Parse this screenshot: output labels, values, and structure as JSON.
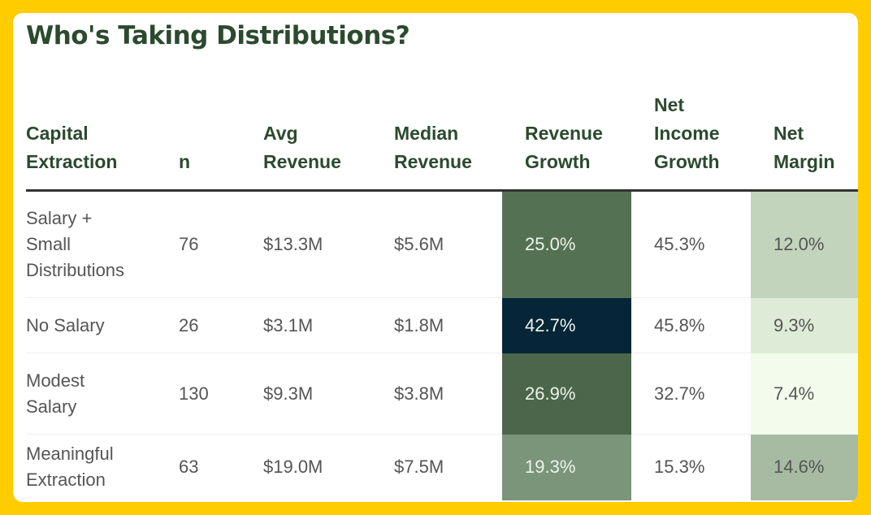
{
  "title": "Who's Taking Distributions?",
  "colors": {
    "background": "#ffcc00",
    "title": "#2b4a2e"
  },
  "columns": [
    "Capital Extraction",
    "n",
    "Avg Revenue",
    "Median Revenue",
    "Revenue Growth",
    "Net Income Growth",
    "Net Margin"
  ],
  "column_lines": [
    [
      "Capital",
      "Extraction"
    ],
    [
      "n"
    ],
    [
      "Avg",
      "Revenue"
    ],
    [
      "Median",
      "Revenue"
    ],
    [
      "Revenue",
      "Growth"
    ],
    [
      "Net",
      "Income",
      "Growth"
    ],
    [
      "Net",
      "Margin"
    ]
  ],
  "rows": [
    {
      "label_lines": [
        "Salary +",
        "Small",
        "Distributions"
      ],
      "n": "76",
      "avg": "$13.3M",
      "median": "$5.6M",
      "rev_growth": "25.0%",
      "ni_growth": "45.3%",
      "margin": "12.0%",
      "rev_bg": "#557154",
      "rev_fg": "#eef3e8",
      "margin_bg": "#c3d4bd",
      "margin_fg": "#555"
    },
    {
      "label_lines": [
        "No Salary"
      ],
      "n": "26",
      "avg": "$3.1M",
      "median": "$1.8M",
      "rev_growth": "42.7%",
      "ni_growth": "45.8%",
      "margin": "9.3%",
      "rev_bg": "#062538",
      "rev_fg": "#eef3e8",
      "margin_bg": "#deebd6",
      "margin_fg": "#555"
    },
    {
      "label_lines": [
        "Modest",
        "Salary"
      ],
      "n": "130",
      "avg": "$9.3M",
      "median": "$3.8M",
      "rev_growth": "26.9%",
      "ni_growth": "32.7%",
      "margin": "7.4%",
      "rev_bg": "#4b664a",
      "rev_fg": "#eef3e8",
      "margin_bg": "#f3fbec",
      "margin_fg": "#555"
    },
    {
      "label_lines": [
        "Meaningful",
        "Extraction"
      ],
      "n": "63",
      "avg": "$19.0M",
      "median": "$7.5M",
      "rev_growth": "19.3%",
      "ni_growth": "15.3%",
      "margin": "14.6%",
      "rev_bg": "#7a957a",
      "rev_fg": "#eef3e8",
      "margin_bg": "#a7bba3",
      "margin_fg": "#555"
    }
  ]
}
